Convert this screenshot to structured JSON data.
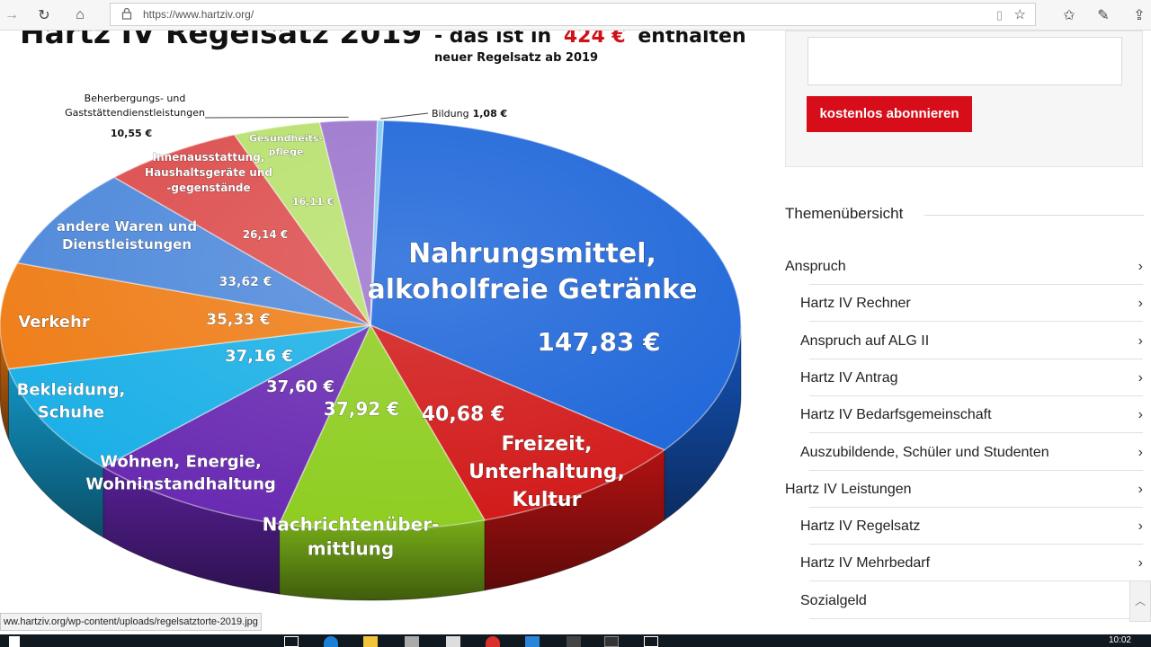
{
  "browser": {
    "url": "https://www.hartziv.org/",
    "status_url": "ww.hartziv.org/wp-content/uploads/regelsatztorte-2019.jpg",
    "clock": "10:02"
  },
  "chart_data": {
    "type": "pie",
    "title_main": "Hartz IV Regelsatz 2019",
    "title_sub1": "- das ist in",
    "title_amount": "424 €",
    "title_sub2": "enthalten",
    "subtitle": "neuer Regelsatz ab 2019",
    "slices": [
      {
        "label_lines": [
          "Nahrungsmittel,",
          "alkoholfreie Getränke"
        ],
        "value_text": "147,83 €",
        "value": 147.83
      },
      {
        "label_lines": [
          "Freizeit,",
          "Unterhaltung,",
          "Kultur"
        ],
        "value_text": "40,68 €",
        "value": 40.68
      },
      {
        "label_lines": [
          "Nachrichtenüber-",
          "mittlung"
        ],
        "value_text": "37,92 €",
        "value": 37.92
      },
      {
        "label_lines": [
          "Wohnen, Energie,",
          "Wohninstandhaltung"
        ],
        "value_text": "37,60 €",
        "value": 37.6
      },
      {
        "label_lines": [
          "Bekleidung,",
          "Schuhe"
        ],
        "value_text": "37,16 €",
        "value": 37.16
      },
      {
        "label_lines": [
          "Verkehr"
        ],
        "value_text": "35,33 €",
        "value": 35.33
      },
      {
        "label_lines": [
          "andere Waren und",
          "Dienstleistungen"
        ],
        "value_text": "33,62 €",
        "value": 33.62
      },
      {
        "label_lines": [
          "Innenausstattung,",
          "Haushaltsgeräte und",
          "-gegenstände"
        ],
        "value_text": "26,14 €",
        "value": 26.14
      },
      {
        "label_lines": [
          "Gesundheits-",
          "pflege"
        ],
        "value_text": "16,11 €",
        "value": 16.11
      },
      {
        "label_lines": [
          "Beherbergungs- und",
          "Gaststättendienstleistungen"
        ],
        "value_text": "10,55 €",
        "value": 10.55
      },
      {
        "label_lines": [
          "Bildung"
        ],
        "value_text": "1,08 €",
        "value": 1.08
      }
    ],
    "colors": [
      "#1862d8",
      "#d11515",
      "#8ccc1c",
      "#6626b0",
      "#16aee6",
      "#ee7a12",
      "#4a86da",
      "#dc4848",
      "#b6e06a",
      "#9a72cc",
      "#7fcaf0"
    ]
  },
  "sidebar": {
    "subscribe_label": "kostenlos abonnieren",
    "section_title": "Themenübersicht",
    "items": [
      {
        "label": "Anspruch",
        "level": 0
      },
      {
        "label": "Hartz IV Rechner",
        "level": 1
      },
      {
        "label": "Anspruch auf ALG II",
        "level": 1
      },
      {
        "label": "Hartz IV Antrag",
        "level": 1
      },
      {
        "label": "Hartz IV Bedarfsgemeinschaft",
        "level": 1
      },
      {
        "label": "Auszubildende, Schüler und Studenten",
        "level": 1
      },
      {
        "label": "Hartz IV Leistungen",
        "level": 0
      },
      {
        "label": "Hartz IV Regelsatz",
        "level": 1
      },
      {
        "label": "Hartz IV Mehrbedarf",
        "level": 1
      },
      {
        "label": "Sozialgeld",
        "level": 1
      }
    ]
  }
}
